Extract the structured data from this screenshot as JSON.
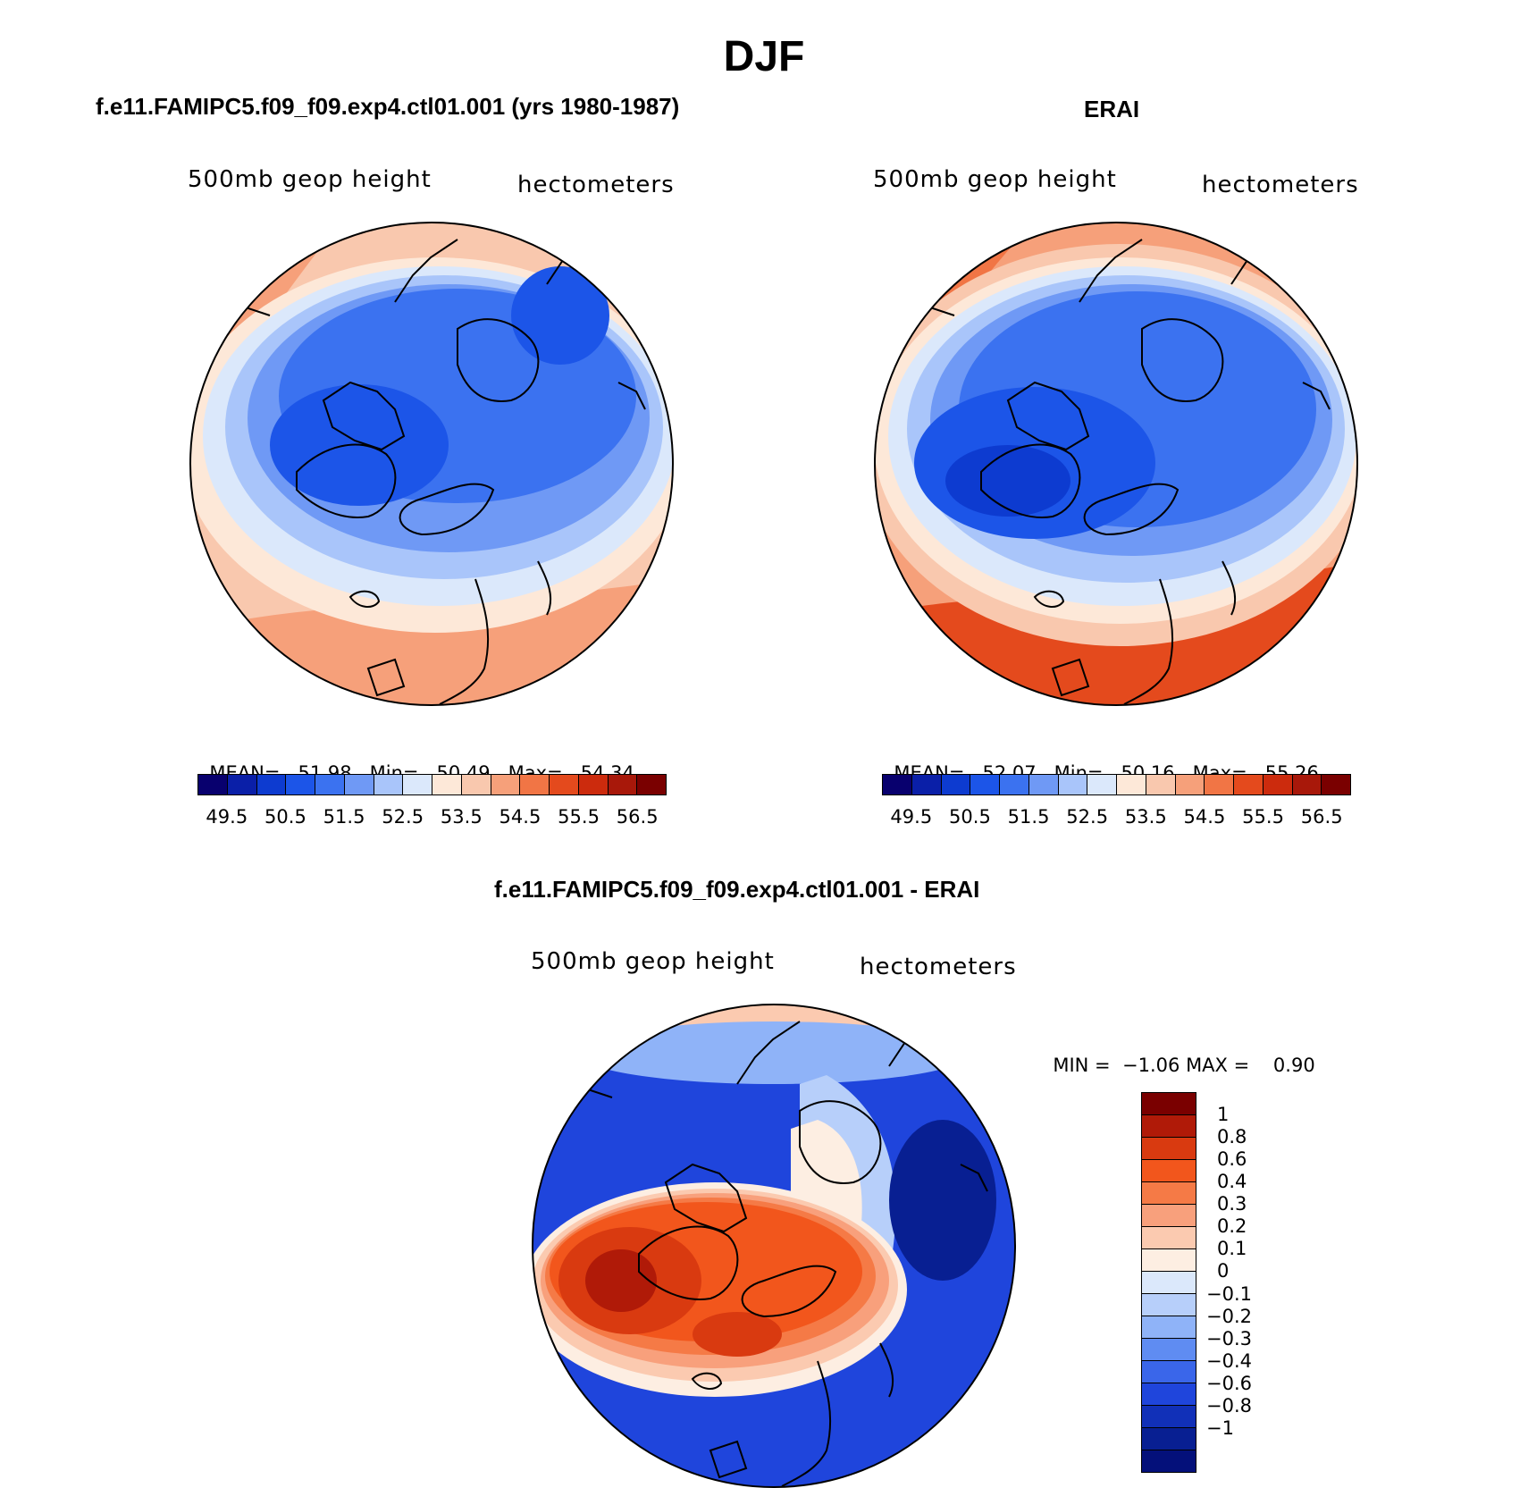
{
  "title": "DJF",
  "panels": {
    "model": {
      "title": "f.e11.FAMIPC5.f09_f09.exp4.ctl01.001 (yrs 1980-1987)",
      "variable": "500mb geop height",
      "units": "hectometers",
      "mean_label": "MEAN=",
      "mean": "51.98",
      "min_label": "Min=",
      "min": "50.49",
      "max_label": "Max=",
      "max": "54.34"
    },
    "obs": {
      "title": "ERAI",
      "variable": "500mb geop height",
      "units": "hectometers",
      "mean_label": "MEAN=",
      "mean": "52.07",
      "min_label": "Min=",
      "min": "50.16",
      "max_label": "Max=",
      "max": "55.26"
    },
    "diff": {
      "title": "f.e11.FAMIPC5.f09_f09.exp4.ctl01.001 - ERAI",
      "variable": "500mb geop height",
      "units": "hectometers",
      "min_label": "MIN =",
      "min": "−1.06",
      "max_label": "MAX =",
      "max": "0.90"
    }
  },
  "colorbar": {
    "colors": [
      "#08006e",
      "#0a1fa8",
      "#0d3bd0",
      "#1c55e8",
      "#3b72f0",
      "#6f99f5",
      "#a9c5fa",
      "#dbe8fb",
      "#fde8d8",
      "#f9c8ae",
      "#f6a07a",
      "#f17545",
      "#e44a1d",
      "#cc2b0d",
      "#a8180a",
      "#7a0000"
    ],
    "ticks": [
      "49.5",
      "50.5",
      "51.5",
      "52.5",
      "53.5",
      "54.5",
      "55.5",
      "56.5"
    ]
  },
  "diff_colorbar": {
    "colors": [
      "#7a0000",
      "#b01a08",
      "#d93a10",
      "#f2561c",
      "#f57a46",
      "#f8a07c",
      "#fbcab0",
      "#fdeee2",
      "#dbe8fb",
      "#b7cffa",
      "#8fb3f8",
      "#5f8cf2",
      "#3a66ea",
      "#1f45dc",
      "#1130b8",
      "#081f92",
      "#04107a"
    ],
    "ticks": [
      "1",
      "0.8",
      "0.6",
      "0.4",
      "0.3",
      "0.2",
      "0.1",
      "0",
      "−0.1",
      "−0.2",
      "−0.3",
      "−0.4",
      "−0.6",
      "−0.8",
      "−1"
    ]
  },
  "map_colors": {
    "deep_blue": "#0d3bd0",
    "blue": "#1c55e8",
    "mid_blue": "#3b72f0",
    "light_blue": "#6f99f5",
    "pale_blue": "#a9c5fa",
    "faint_blue": "#dbe8fb",
    "cream": "#fde8d8",
    "peach": "#f9c8ae",
    "salmon": "#f6a07a",
    "orange": "#f17545",
    "red_orange": "#e44a1d",
    "dark_red": "#cc2b0d"
  }
}
